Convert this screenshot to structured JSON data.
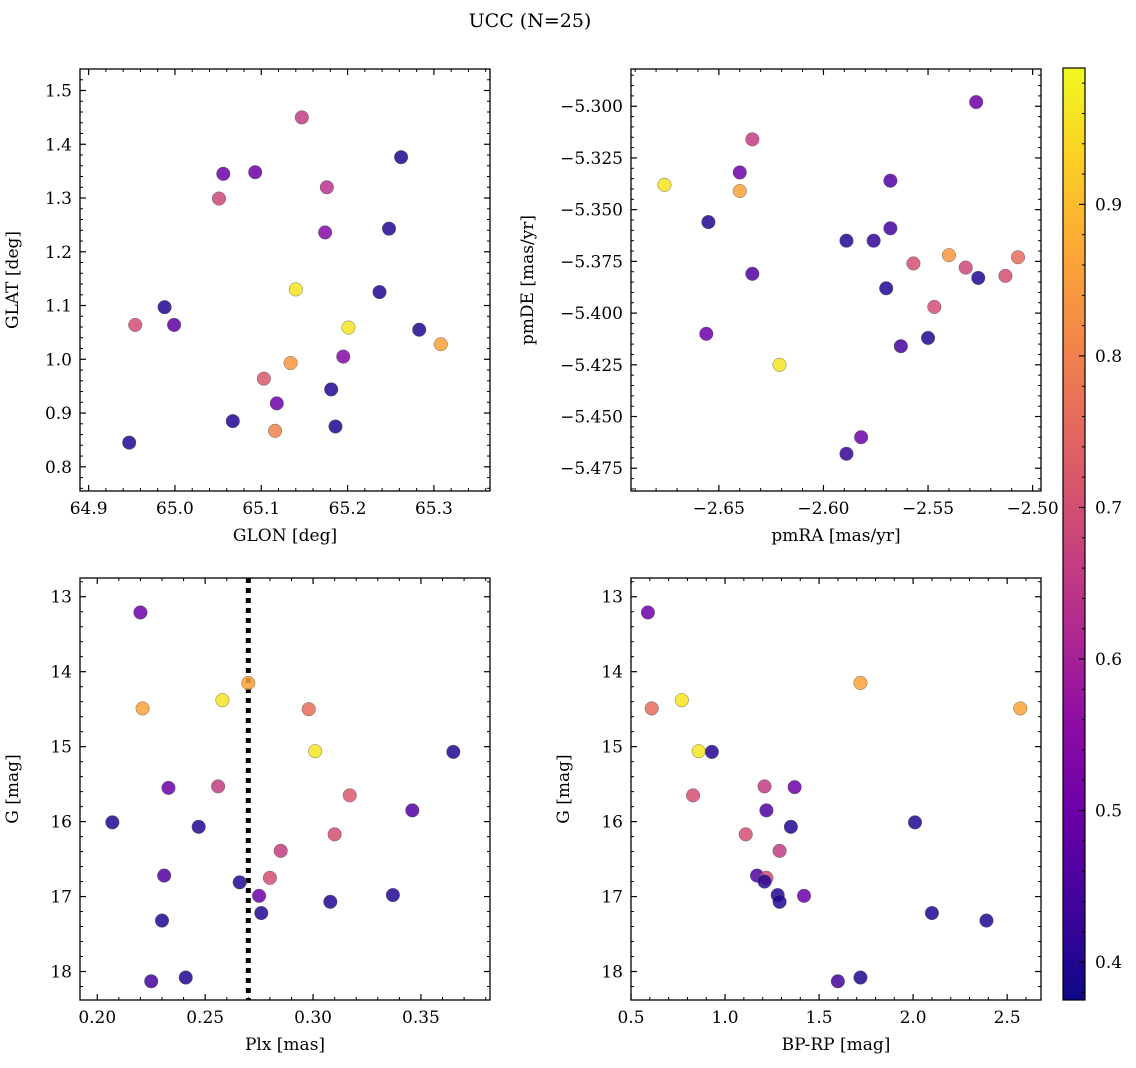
{
  "figure": {
    "title": "UCC (N=25)",
    "colormap": "plasma",
    "colorbar": {
      "ticks": [
        0.4,
        0.5,
        0.6,
        0.7,
        0.8,
        0.9
      ],
      "tick_labels": [
        "0.4",
        "0.5",
        "0.6",
        "0.7",
        "0.8",
        "0.9"
      ],
      "range": [
        0.375,
        0.99
      ]
    }
  },
  "chart_data": [
    {
      "type": "scatter",
      "xlabel": "GLON [deg]",
      "ylabel": "GLAT [deg]",
      "xlim": [
        64.89,
        65.365
      ],
      "ylim": [
        0.755,
        1.54
      ],
      "xticks": [
        64.9,
        65.0,
        65.1,
        65.2,
        65.3
      ],
      "xtick_labels": [
        "64.9",
        "65.0",
        "65.1",
        "65.2",
        "65.3"
      ],
      "yticks": [
        0.8,
        0.9,
        1.0,
        1.1,
        1.2,
        1.3,
        1.4,
        1.5
      ],
      "ytick_labels": [
        "0.8",
        "0.9",
        "1.0",
        "1.1",
        "1.2",
        "1.3",
        "1.4",
        "1.5"
      ],
      "points": [
        {
          "x": 65.147,
          "y": 1.45,
          "c": 0.66
        },
        {
          "x": 65.262,
          "y": 1.376,
          "c": 0.4
        },
        {
          "x": 65.056,
          "y": 1.345,
          "c": 0.5
        },
        {
          "x": 65.093,
          "y": 1.348,
          "c": 0.5
        },
        {
          "x": 65.176,
          "y": 1.32,
          "c": 0.64
        },
        {
          "x": 65.051,
          "y": 1.299,
          "c": 0.68
        },
        {
          "x": 65.248,
          "y": 1.243,
          "c": 0.4
        },
        {
          "x": 65.174,
          "y": 1.236,
          "c": 0.54
        },
        {
          "x": 65.14,
          "y": 1.13,
          "c": 0.96
        },
        {
          "x": 65.237,
          "y": 1.125,
          "c": 0.4
        },
        {
          "x": 64.988,
          "y": 1.097,
          "c": 0.4
        },
        {
          "x": 64.954,
          "y": 1.064,
          "c": 0.7
        },
        {
          "x": 64.999,
          "y": 1.064,
          "c": 0.48
        },
        {
          "x": 65.201,
          "y": 1.059,
          "c": 0.96
        },
        {
          "x": 65.283,
          "y": 1.055,
          "c": 0.4
        },
        {
          "x": 65.308,
          "y": 1.028,
          "c": 0.86
        },
        {
          "x": 65.195,
          "y": 1.005,
          "c": 0.54
        },
        {
          "x": 65.134,
          "y": 0.993,
          "c": 0.84
        },
        {
          "x": 65.103,
          "y": 0.964,
          "c": 0.72
        },
        {
          "x": 65.181,
          "y": 0.944,
          "c": 0.4
        },
        {
          "x": 65.118,
          "y": 0.918,
          "c": 0.5
        },
        {
          "x": 65.067,
          "y": 0.885,
          "c": 0.4
        },
        {
          "x": 65.186,
          "y": 0.875,
          "c": 0.4
        },
        {
          "x": 65.116,
          "y": 0.867,
          "c": 0.8
        },
        {
          "x": 64.947,
          "y": 0.845,
          "c": 0.4
        }
      ]
    },
    {
      "type": "scatter",
      "xlabel": "pmRA [mas/yr]",
      "ylabel": "pmDE [mas/yr]",
      "xlim": [
        -2.692,
        -2.496
      ],
      "ylim": [
        -5.486,
        -5.282
      ],
      "xticks": [
        -2.65,
        -2.6,
        -2.55,
        -2.5
      ],
      "xtick_labels": [
        "−2.65",
        "−2.60",
        "−2.55",
        "−2.50"
      ],
      "yticks": [
        -5.475,
        -5.45,
        -5.425,
        -5.4,
        -5.375,
        -5.35,
        -5.325,
        -5.3
      ],
      "ytick_labels": [
        "−5.475",
        "−5.450",
        "−5.425",
        "−5.400",
        "−5.375",
        "−5.350",
        "−5.325",
        "−5.300"
      ],
      "points": [
        {
          "x": -2.527,
          "y": -5.298,
          "c": 0.5
        },
        {
          "x": -2.634,
          "y": -5.316,
          "c": 0.66
        },
        {
          "x": -2.64,
          "y": -5.332,
          "c": 0.5
        },
        {
          "x": -2.676,
          "y": -5.338,
          "c": 0.96
        },
        {
          "x": -2.64,
          "y": -5.341,
          "c": 0.86
        },
        {
          "x": -2.568,
          "y": -5.336,
          "c": 0.46
        },
        {
          "x": -2.655,
          "y": -5.356,
          "c": 0.4
        },
        {
          "x": -2.568,
          "y": -5.359,
          "c": 0.44
        },
        {
          "x": -2.589,
          "y": -5.365,
          "c": 0.4
        },
        {
          "x": -2.576,
          "y": -5.365,
          "c": 0.42
        },
        {
          "x": -2.54,
          "y": -5.372,
          "c": 0.84
        },
        {
          "x": -2.557,
          "y": -5.376,
          "c": 0.7
        },
        {
          "x": -2.532,
          "y": -5.378,
          "c": 0.68
        },
        {
          "x": -2.507,
          "y": -5.373,
          "c": 0.76
        },
        {
          "x": -2.634,
          "y": -5.381,
          "c": 0.46
        },
        {
          "x": -2.513,
          "y": -5.382,
          "c": 0.7
        },
        {
          "x": -2.526,
          "y": -5.383,
          "c": 0.4
        },
        {
          "x": -2.57,
          "y": -5.388,
          "c": 0.4
        },
        {
          "x": -2.547,
          "y": -5.397,
          "c": 0.7
        },
        {
          "x": -2.656,
          "y": -5.41,
          "c": 0.5
        },
        {
          "x": -2.55,
          "y": -5.412,
          "c": 0.4
        },
        {
          "x": -2.563,
          "y": -5.416,
          "c": 0.44
        },
        {
          "x": -2.621,
          "y": -5.425,
          "c": 0.96
        },
        {
          "x": -2.582,
          "y": -5.46,
          "c": 0.5
        },
        {
          "x": -2.589,
          "y": -5.468,
          "c": 0.42
        }
      ]
    },
    {
      "type": "scatter",
      "xlabel": "Plx [mas]",
      "ylabel": "G [mag]",
      "xlim": [
        0.192,
        0.382
      ],
      "ylim": [
        18.38,
        12.75
      ],
      "y_inverted": true,
      "xticks": [
        0.2,
        0.25,
        0.3,
        0.35
      ],
      "xtick_labels": [
        "0.20",
        "0.25",
        "0.30",
        "0.35"
      ],
      "yticks": [
        13,
        14,
        15,
        16,
        17,
        18
      ],
      "ytick_labels": [
        "13",
        "14",
        "15",
        "16",
        "17",
        "18"
      ],
      "vline": {
        "x": 0.27,
        "style": "dotted"
      },
      "points": [
        {
          "x": 0.22,
          "y": 13.21,
          "c": 0.5
        },
        {
          "x": 0.27,
          "y": 14.15,
          "c": 0.86
        },
        {
          "x": 0.258,
          "y": 14.38,
          "c": 0.96
        },
        {
          "x": 0.221,
          "y": 14.49,
          "c": 0.86
        },
        {
          "x": 0.298,
          "y": 14.5,
          "c": 0.76
        },
        {
          "x": 0.301,
          "y": 15.06,
          "c": 0.96
        },
        {
          "x": 0.365,
          "y": 15.07,
          "c": 0.4
        },
        {
          "x": 0.256,
          "y": 15.53,
          "c": 0.66
        },
        {
          "x": 0.233,
          "y": 15.55,
          "c": 0.5
        },
        {
          "x": 0.317,
          "y": 15.65,
          "c": 0.72
        },
        {
          "x": 0.346,
          "y": 15.85,
          "c": 0.46
        },
        {
          "x": 0.207,
          "y": 16.01,
          "c": 0.4
        },
        {
          "x": 0.247,
          "y": 16.07,
          "c": 0.4
        },
        {
          "x": 0.31,
          "y": 16.17,
          "c": 0.7
        },
        {
          "x": 0.285,
          "y": 16.39,
          "c": 0.66
        },
        {
          "x": 0.231,
          "y": 16.72,
          "c": 0.46
        },
        {
          "x": 0.28,
          "y": 16.75,
          "c": 0.7
        },
        {
          "x": 0.266,
          "y": 16.81,
          "c": 0.4
        },
        {
          "x": 0.275,
          "y": 16.99,
          "c": 0.5
        },
        {
          "x": 0.337,
          "y": 16.98,
          "c": 0.4
        },
        {
          "x": 0.308,
          "y": 17.07,
          "c": 0.4
        },
        {
          "x": 0.276,
          "y": 17.22,
          "c": 0.4
        },
        {
          "x": 0.23,
          "y": 17.32,
          "c": 0.4
        },
        {
          "x": 0.241,
          "y": 18.08,
          "c": 0.4
        },
        {
          "x": 0.225,
          "y": 18.13,
          "c": 0.44
        }
      ]
    },
    {
      "type": "scatter",
      "xlabel": "BP-RP [mag]",
      "ylabel": "G [mag]",
      "xlim": [
        0.5,
        2.68
      ],
      "ylim": [
        18.38,
        12.75
      ],
      "y_inverted": true,
      "xticks": [
        0.5,
        1.0,
        1.5,
        2.0,
        2.5
      ],
      "xtick_labels": [
        "0.5",
        "1.0",
        "1.5",
        "2.0",
        "2.5"
      ],
      "yticks": [
        13,
        14,
        15,
        16,
        17,
        18
      ],
      "ytick_labels": [
        "13",
        "14",
        "15",
        "16",
        "17",
        "18"
      ],
      "points": [
        {
          "x": 0.59,
          "y": 13.21,
          "c": 0.5
        },
        {
          "x": 1.72,
          "y": 14.15,
          "c": 0.86
        },
        {
          "x": 0.77,
          "y": 14.38,
          "c": 0.96
        },
        {
          "x": 0.61,
          "y": 14.49,
          "c": 0.76
        },
        {
          "x": 2.57,
          "y": 14.49,
          "c": 0.86
        },
        {
          "x": 0.86,
          "y": 15.06,
          "c": 0.96
        },
        {
          "x": 0.93,
          "y": 15.07,
          "c": 0.4
        },
        {
          "x": 1.21,
          "y": 15.53,
          "c": 0.66
        },
        {
          "x": 1.37,
          "y": 15.54,
          "c": 0.5
        },
        {
          "x": 0.83,
          "y": 15.65,
          "c": 0.7
        },
        {
          "x": 1.22,
          "y": 15.85,
          "c": 0.46
        },
        {
          "x": 2.01,
          "y": 16.01,
          "c": 0.4
        },
        {
          "x": 1.35,
          "y": 16.07,
          "c": 0.4
        },
        {
          "x": 1.11,
          "y": 16.17,
          "c": 0.7
        },
        {
          "x": 1.29,
          "y": 16.39,
          "c": 0.66
        },
        {
          "x": 1.17,
          "y": 16.72,
          "c": 0.46
        },
        {
          "x": 1.22,
          "y": 16.75,
          "c": 0.7
        },
        {
          "x": 1.21,
          "y": 16.8,
          "c": 0.4
        },
        {
          "x": 1.42,
          "y": 16.99,
          "c": 0.5
        },
        {
          "x": 1.28,
          "y": 16.98,
          "c": 0.4
        },
        {
          "x": 1.29,
          "y": 17.07,
          "c": 0.4
        },
        {
          "x": 2.1,
          "y": 17.22,
          "c": 0.4
        },
        {
          "x": 2.39,
          "y": 17.32,
          "c": 0.4
        },
        {
          "x": 1.72,
          "y": 18.08,
          "c": 0.4
        },
        {
          "x": 1.6,
          "y": 18.13,
          "c": 0.44
        }
      ]
    }
  ]
}
